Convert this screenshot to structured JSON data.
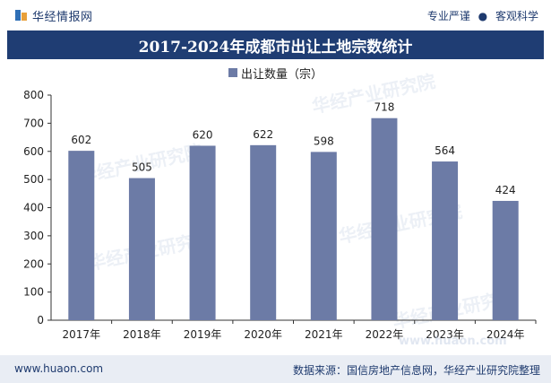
{
  "header": {
    "brand": "华经情报网",
    "slogan_left": "专业严谨",
    "slogan_dot": "●",
    "slogan_right": "客观科学"
  },
  "title": "2017-2024年成都市出让土地宗数统计",
  "legend": {
    "label": "出让数量（宗）"
  },
  "watermark": {
    "text": "华经产业研究院",
    "url": "www.huaon.com"
  },
  "footer": {
    "url": "www.huaon.com",
    "source": "数据来源：国信房地产信息网，华经产业研究院整理"
  },
  "colors": {
    "bar": "#6c7ba6",
    "titlebar": "#1f3d73",
    "footer_bg": "#e9edf4"
  },
  "chart_data": {
    "type": "bar",
    "categories": [
      "2017年",
      "2018年",
      "2019年",
      "2020年",
      "2021年",
      "2022年",
      "2023年",
      "2024年"
    ],
    "series": [
      {
        "name": "出让数量（宗）",
        "values": [
          602,
          505,
          620,
          622,
          598,
          718,
          564,
          424
        ]
      }
    ],
    "ylim": [
      0,
      800
    ],
    "yticks": [
      0,
      100,
      200,
      300,
      400,
      500,
      600,
      700,
      800
    ],
    "legend_position": "top-center",
    "grid": false
  }
}
